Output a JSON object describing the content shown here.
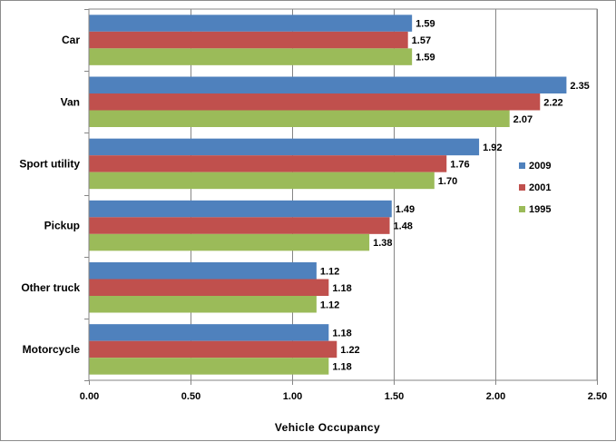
{
  "chart_data": {
    "type": "bar",
    "orientation": "horizontal",
    "categories": [
      "Car",
      "Van",
      "Sport utility",
      "Pickup",
      "Other truck",
      "Motorcycle"
    ],
    "series": [
      {
        "name": "2009",
        "color": "#4F81BD",
        "values": [
          1.59,
          2.35,
          1.92,
          1.49,
          1.12,
          1.18
        ]
      },
      {
        "name": "2001",
        "color": "#C0504D",
        "values": [
          1.57,
          2.22,
          1.76,
          1.48,
          1.18,
          1.22
        ]
      },
      {
        "name": "1995",
        "color": "#9BBB59",
        "values": [
          1.59,
          2.07,
          1.7,
          1.38,
          1.12,
          1.18
        ]
      }
    ],
    "data_labels": [
      [
        "1.59",
        "1.57",
        "1.59"
      ],
      [
        "2.35",
        "2.22",
        "2.07"
      ],
      [
        "1.92",
        "1.76",
        "1.70"
      ],
      [
        "1.49",
        "1.48",
        "1.38"
      ],
      [
        "1.12",
        "1.18",
        "1.12"
      ],
      [
        "1.18",
        "1.22",
        "1.18"
      ]
    ],
    "xlabel": "Vehicle Occupancy",
    "ylabel": "",
    "xlim": [
      0,
      2.5
    ],
    "xticks": [
      "0.00",
      "0.50",
      "1.00",
      "1.50",
      "2.00",
      "2.50"
    ],
    "grid": "vertical",
    "legend": "right"
  }
}
